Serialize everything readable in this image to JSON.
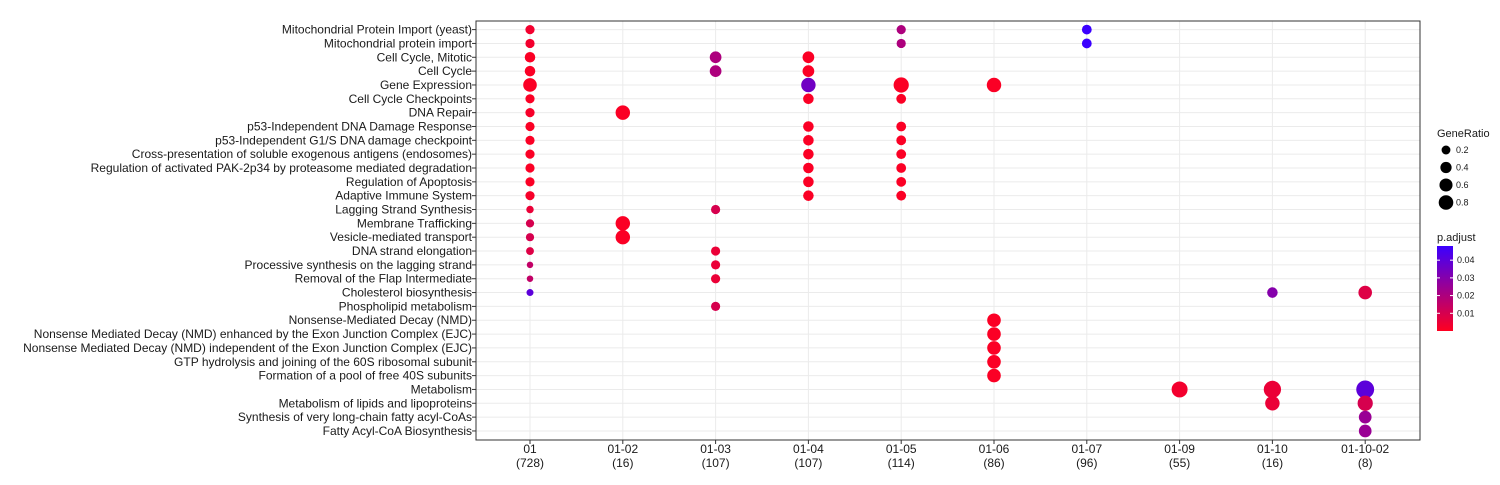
{
  "chart_data": {
    "type": "scatter",
    "title": "",
    "xlabel": "",
    "ylabel": "",
    "grid": true,
    "legend_placement": "right",
    "x_categories": [
      {
        "label": "01",
        "count": "(728)"
      },
      {
        "label": "01-02",
        "count": "(16)"
      },
      {
        "label": "01-03",
        "count": "(107)"
      },
      {
        "label": "01-04",
        "count": "(107)"
      },
      {
        "label": "01-05",
        "count": "(114)"
      },
      {
        "label": "01-06",
        "count": "(86)"
      },
      {
        "label": "01-07",
        "count": "(96)"
      },
      {
        "label": "01-09",
        "count": "(55)"
      },
      {
        "label": "01-10",
        "count": "(16)"
      },
      {
        "label": "01-10-02",
        "count": "(8)"
      }
    ],
    "y_categories": [
      "Mitochondrial Protein Import (yeast)",
      "Mitochondrial protein import",
      "Cell Cycle, Mitotic",
      "Cell Cycle",
      "Gene Expression",
      "Cell Cycle Checkpoints",
      "DNA Repair",
      "p53-Independent DNA Damage Response",
      "p53-Independent G1/S DNA damage checkpoint",
      "Cross-presentation of soluble exogenous antigens (endosomes)",
      "Regulation of activated PAK-2p34 by proteasome mediated degradation",
      "Regulation of Apoptosis",
      "Adaptive Immune System",
      "Lagging Strand Synthesis",
      "Membrane Trafficking",
      "Vesicle-mediated transport",
      "DNA strand elongation",
      "Processive synthesis on the lagging strand",
      "Removal of the Flap Intermediate",
      "Cholesterol biosynthesis",
      "Phospholipid metabolism",
      "Nonsense-Mediated Decay (NMD)",
      "Nonsense Mediated Decay (NMD) enhanced by the Exon Junction Complex (EJC)",
      "Nonsense Mediated Decay (NMD) independent of the Exon Junction Complex (EJC)",
      "GTP hydrolysis and joining of the 60S ribosomal subunit",
      "Formation of a pool of free 40S subunits",
      "Metabolism",
      "Metabolism of lipids and lipoproteins",
      "Synthesis of very long-chain fatty acyl-CoAs",
      "Fatty Acyl-CoA Biosynthesis"
    ],
    "points": [
      {
        "x": "01",
        "y": "Mitochondrial Protein Import (yeast)",
        "gene_ratio": 0.1,
        "p_adjust": 0.003
      },
      {
        "x": "01",
        "y": "Mitochondrial protein import",
        "gene_ratio": 0.1,
        "p_adjust": 0.003
      },
      {
        "x": "01",
        "y": "Cell Cycle, Mitotic",
        "gene_ratio": 0.15,
        "p_adjust": 0.001
      },
      {
        "x": "01",
        "y": "Cell Cycle",
        "gene_ratio": 0.15,
        "p_adjust": 0.001
      },
      {
        "x": "01",
        "y": "Gene Expression",
        "gene_ratio": 0.3,
        "p_adjust": 0.001
      },
      {
        "x": "01",
        "y": "Cell Cycle Checkpoints",
        "gene_ratio": 0.1,
        "p_adjust": 0.001
      },
      {
        "x": "01",
        "y": "DNA Repair",
        "gene_ratio": 0.1,
        "p_adjust": 0.002
      },
      {
        "x": "01",
        "y": "p53-Independent DNA Damage Response",
        "gene_ratio": 0.1,
        "p_adjust": 0.001
      },
      {
        "x": "01",
        "y": "p53-Independent G1/S DNA damage checkpoint",
        "gene_ratio": 0.1,
        "p_adjust": 0.001
      },
      {
        "x": "01",
        "y": "Cross-presentation of soluble exogenous antigens (endosomes)",
        "gene_ratio": 0.1,
        "p_adjust": 0.001
      },
      {
        "x": "01",
        "y": "Regulation of activated PAK-2p34 by proteasome mediated degradation",
        "gene_ratio": 0.1,
        "p_adjust": 0.001
      },
      {
        "x": "01",
        "y": "Regulation of Apoptosis",
        "gene_ratio": 0.1,
        "p_adjust": 0.001
      },
      {
        "x": "01",
        "y": "Adaptive Immune System",
        "gene_ratio": 0.1,
        "p_adjust": 0.002
      },
      {
        "x": "01",
        "y": "Lagging Strand Synthesis",
        "gene_ratio": 0.05,
        "p_adjust": 0.005
      },
      {
        "x": "01",
        "y": "Membrane Trafficking",
        "gene_ratio": 0.07,
        "p_adjust": 0.01
      },
      {
        "x": "01",
        "y": "Vesicle-mediated transport",
        "gene_ratio": 0.07,
        "p_adjust": 0.01
      },
      {
        "x": "01",
        "y": "DNA strand elongation",
        "gene_ratio": 0.06,
        "p_adjust": 0.008
      },
      {
        "x": "01",
        "y": "Processive synthesis on the lagging strand",
        "gene_ratio": 0.03,
        "p_adjust": 0.015
      },
      {
        "x": "01",
        "y": "Removal of the Flap Intermediate",
        "gene_ratio": 0.03,
        "p_adjust": 0.015
      },
      {
        "x": "01",
        "y": "Cholesterol biosynthesis",
        "gene_ratio": 0.04,
        "p_adjust": 0.04
      },
      {
        "x": "01-02",
        "y": "DNA Repair",
        "gene_ratio": 0.35,
        "p_adjust": 0.001
      },
      {
        "x": "01-02",
        "y": "Membrane Trafficking",
        "gene_ratio": 0.35,
        "p_adjust": 0.001
      },
      {
        "x": "01-02",
        "y": "Vesicle-mediated transport",
        "gene_ratio": 0.35,
        "p_adjust": 0.001
      },
      {
        "x": "01-03",
        "y": "Cell Cycle, Mitotic",
        "gene_ratio": 0.2,
        "p_adjust": 0.02
      },
      {
        "x": "01-03",
        "y": "Cell Cycle",
        "gene_ratio": 0.2,
        "p_adjust": 0.02
      },
      {
        "x": "01-03",
        "y": "Lagging Strand Synthesis",
        "gene_ratio": 0.1,
        "p_adjust": 0.01
      },
      {
        "x": "01-03",
        "y": "DNA strand elongation",
        "gene_ratio": 0.1,
        "p_adjust": 0.005
      },
      {
        "x": "01-03",
        "y": "Processive synthesis on the lagging strand",
        "gene_ratio": 0.1,
        "p_adjust": 0.005
      },
      {
        "x": "01-03",
        "y": "Removal of the Flap Intermediate",
        "gene_ratio": 0.1,
        "p_adjust": 0.005
      },
      {
        "x": "01-03",
        "y": "Phospholipid metabolism",
        "gene_ratio": 0.1,
        "p_adjust": 0.01
      },
      {
        "x": "01-04",
        "y": "Cell Cycle, Mitotic",
        "gene_ratio": 0.2,
        "p_adjust": 0.001
      },
      {
        "x": "01-04",
        "y": "Cell Cycle",
        "gene_ratio": 0.2,
        "p_adjust": 0.001
      },
      {
        "x": "01-04",
        "y": "Gene Expression",
        "gene_ratio": 0.35,
        "p_adjust": 0.035
      },
      {
        "x": "01-04",
        "y": "Cell Cycle Checkpoints",
        "gene_ratio": 0.15,
        "p_adjust": 0.001
      },
      {
        "x": "01-04",
        "y": "p53-Independent DNA Damage Response",
        "gene_ratio": 0.15,
        "p_adjust": 0.001
      },
      {
        "x": "01-04",
        "y": "p53-Independent G1/S DNA damage checkpoint",
        "gene_ratio": 0.15,
        "p_adjust": 0.001
      },
      {
        "x": "01-04",
        "y": "Cross-presentation of soluble exogenous antigens (endosomes)",
        "gene_ratio": 0.15,
        "p_adjust": 0.001
      },
      {
        "x": "01-04",
        "y": "Regulation of activated PAK-2p34 by proteasome mediated degradation",
        "gene_ratio": 0.15,
        "p_adjust": 0.001
      },
      {
        "x": "01-04",
        "y": "Regulation of Apoptosis",
        "gene_ratio": 0.15,
        "p_adjust": 0.001
      },
      {
        "x": "01-04",
        "y": "Adaptive Immune System",
        "gene_ratio": 0.15,
        "p_adjust": 0.001
      },
      {
        "x": "01-05",
        "y": "Mitochondrial Protein Import (yeast)",
        "gene_ratio": 0.1,
        "p_adjust": 0.02
      },
      {
        "x": "01-05",
        "y": "Mitochondrial protein import",
        "gene_ratio": 0.1,
        "p_adjust": 0.02
      },
      {
        "x": "01-05",
        "y": "Gene Expression",
        "gene_ratio": 0.4,
        "p_adjust": 0.001
      },
      {
        "x": "01-05",
        "y": "Cell Cycle Checkpoints",
        "gene_ratio": 0.12,
        "p_adjust": 0.001
      },
      {
        "x": "01-05",
        "y": "p53-Independent DNA Damage Response",
        "gene_ratio": 0.12,
        "p_adjust": 0.001
      },
      {
        "x": "01-05",
        "y": "p53-Independent G1/S DNA damage checkpoint",
        "gene_ratio": 0.12,
        "p_adjust": 0.001
      },
      {
        "x": "01-05",
        "y": "Cross-presentation of soluble exogenous antigens (endosomes)",
        "gene_ratio": 0.12,
        "p_adjust": 0.001
      },
      {
        "x": "01-05",
        "y": "Regulation of activated PAK-2p34 by proteasome mediated degradation",
        "gene_ratio": 0.12,
        "p_adjust": 0.001
      },
      {
        "x": "01-05",
        "y": "Regulation of Apoptosis",
        "gene_ratio": 0.12,
        "p_adjust": 0.001
      },
      {
        "x": "01-05",
        "y": "Adaptive Immune System",
        "gene_ratio": 0.12,
        "p_adjust": 0.001
      },
      {
        "x": "01-06",
        "y": "Gene Expression",
        "gene_ratio": 0.35,
        "p_adjust": 0.001
      },
      {
        "x": "01-06",
        "y": "Nonsense-Mediated Decay (NMD)",
        "gene_ratio": 0.3,
        "p_adjust": 0.001
      },
      {
        "x": "01-06",
        "y": "Nonsense Mediated Decay (NMD) enhanced by the Exon Junction Complex (EJC)",
        "gene_ratio": 0.3,
        "p_adjust": 0.001
      },
      {
        "x": "01-06",
        "y": "Nonsense Mediated Decay (NMD) independent of the Exon Junction Complex (EJC)",
        "gene_ratio": 0.3,
        "p_adjust": 0.001
      },
      {
        "x": "01-06",
        "y": "GTP hydrolysis and joining of the 60S ribosomal subunit",
        "gene_ratio": 0.3,
        "p_adjust": 0.001
      },
      {
        "x": "01-06",
        "y": "Formation of a pool of free 40S subunits",
        "gene_ratio": 0.3,
        "p_adjust": 0.001
      },
      {
        "x": "01-07",
        "y": "Mitochondrial Protein Import (yeast)",
        "gene_ratio": 0.12,
        "p_adjust": 0.048
      },
      {
        "x": "01-07",
        "y": "Mitochondrial protein import",
        "gene_ratio": 0.12,
        "p_adjust": 0.048
      },
      {
        "x": "01-09",
        "y": "Metabolism",
        "gene_ratio": 0.45,
        "p_adjust": 0.003
      },
      {
        "x": "01-10",
        "y": "Cholesterol biosynthesis",
        "gene_ratio": 0.15,
        "p_adjust": 0.03
      },
      {
        "x": "01-10",
        "y": "Metabolism",
        "gene_ratio": 0.55,
        "p_adjust": 0.005
      },
      {
        "x": "01-10",
        "y": "Metabolism of lipids and lipoproteins",
        "gene_ratio": 0.35,
        "p_adjust": 0.005
      },
      {
        "x": "01-10-02",
        "y": "Cholesterol biosynthesis",
        "gene_ratio": 0.3,
        "p_adjust": 0.008
      },
      {
        "x": "01-10-02",
        "y": "Metabolism",
        "gene_ratio": 0.6,
        "p_adjust": 0.04
      },
      {
        "x": "01-10-02",
        "y": "Metabolism of lipids and lipoproteins",
        "gene_ratio": 0.4,
        "p_adjust": 0.01
      },
      {
        "x": "01-10-02",
        "y": "Synthesis of very long-chain fatty acyl-CoAs",
        "gene_ratio": 0.25,
        "p_adjust": 0.025
      },
      {
        "x": "01-10-02",
        "y": "Fatty Acyl-CoA Biosynthesis",
        "gene_ratio": 0.25,
        "p_adjust": 0.025
      }
    ],
    "size_legend": {
      "title": "GeneRatio",
      "values": [
        0.2,
        0.4,
        0.6,
        0.8
      ],
      "labels": [
        "0.2",
        "0.4",
        "0.6",
        "0.8"
      ]
    },
    "color_legend": {
      "title": "p.adjust",
      "range": [
        0.0,
        0.048
      ],
      "ticks": [
        0.01,
        0.02,
        0.03,
        0.04
      ],
      "tick_labels": [
        "0.01",
        "0.02",
        "0.03",
        "0.04"
      ],
      "low_color": "#ff0020",
      "high_color": "#3b00ff"
    },
    "colors": {
      "panel_border": "#333333",
      "grid": "#ebebeb",
      "text": "#1a1a1a",
      "point_marker": "#000000"
    }
  }
}
